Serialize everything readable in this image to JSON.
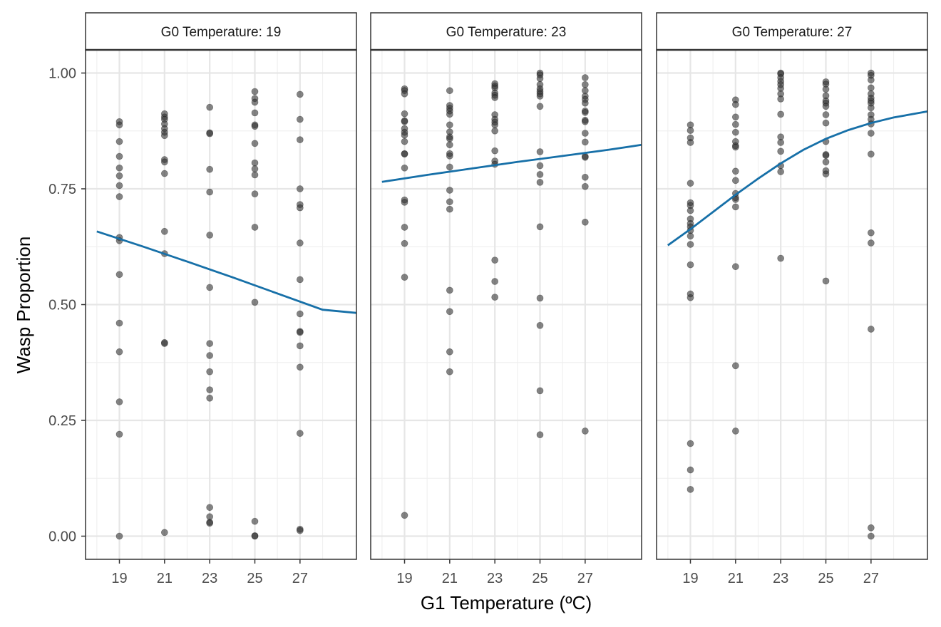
{
  "chart_data": {
    "type": "scatter",
    "title": "",
    "xlabel": "G1 Temperature (ºC)",
    "ylabel": "Wasp Proportion",
    "x_ticks": [
      19,
      21,
      23,
      25,
      27
    ],
    "y_ticks": [
      "0.00",
      "0.25",
      "0.50",
      "0.75",
      "1.00"
    ],
    "xlim": [
      17.5,
      29.5
    ],
    "ylim": [
      -0.05,
      1.05
    ],
    "grid": true,
    "point_color": "#333333",
    "line_color": "#1770A8",
    "panels": [
      {
        "strip_label": "G0 Temperature: 19",
        "fit_line": {
          "x": [
            18,
            20,
            22,
            24,
            26,
            28,
            29.5
          ],
          "y": [
            0.658,
            0.626,
            0.593,
            0.559,
            0.524,
            0.489,
            0.482
          ]
        },
        "points": [
          [
            19,
            0.895
          ],
          [
            19,
            0.888
          ],
          [
            19,
            0.852
          ],
          [
            19,
            0.82
          ],
          [
            19,
            0.795
          ],
          [
            19,
            0.778
          ],
          [
            19,
            0.757
          ],
          [
            19,
            0.733
          ],
          [
            19,
            0.645
          ],
          [
            19,
            0.638
          ],
          [
            19,
            0.565
          ],
          [
            19,
            0.46
          ],
          [
            19,
            0.398
          ],
          [
            19,
            0.29
          ],
          [
            19,
            0.22
          ],
          [
            19,
            0.0
          ],
          [
            21,
            0.912
          ],
          [
            21,
            0.905
          ],
          [
            21,
            0.9
          ],
          [
            21,
            0.89
          ],
          [
            21,
            0.88
          ],
          [
            21,
            0.872
          ],
          [
            21,
            0.865
          ],
          [
            21,
            0.813
          ],
          [
            21,
            0.808
          ],
          [
            21,
            0.783
          ],
          [
            21,
            0.658
          ],
          [
            21,
            0.61
          ],
          [
            21,
            0.418
          ],
          [
            21,
            0.416
          ],
          [
            21,
            0.008
          ],
          [
            23,
            0.926
          ],
          [
            23,
            0.871
          ],
          [
            23,
            0.869
          ],
          [
            23,
            0.792
          ],
          [
            23,
            0.743
          ],
          [
            23,
            0.65
          ],
          [
            23,
            0.537
          ],
          [
            23,
            0.416
          ],
          [
            23,
            0.39
          ],
          [
            23,
            0.355
          ],
          [
            23,
            0.316
          ],
          [
            23,
            0.298
          ],
          [
            23,
            0.062
          ],
          [
            23,
            0.042
          ],
          [
            23,
            0.03
          ],
          [
            23,
            0.028
          ],
          [
            25,
            0.96
          ],
          [
            25,
            0.945
          ],
          [
            25,
            0.937
          ],
          [
            25,
            0.914
          ],
          [
            25,
            0.888
          ],
          [
            25,
            0.885
          ],
          [
            25,
            0.848
          ],
          [
            25,
            0.806
          ],
          [
            25,
            0.793
          ],
          [
            25,
            0.78
          ],
          [
            25,
            0.739
          ],
          [
            25,
            0.667
          ],
          [
            25,
            0.505
          ],
          [
            25,
            0.032
          ],
          [
            25,
            0.001
          ],
          [
            25,
            0.0
          ],
          [
            27,
            0.954
          ],
          [
            27,
            0.9
          ],
          [
            27,
            0.856
          ],
          [
            27,
            0.75
          ],
          [
            27,
            0.716
          ],
          [
            27,
            0.709
          ],
          [
            27,
            0.633
          ],
          [
            27,
            0.554
          ],
          [
            27,
            0.48
          ],
          [
            27,
            0.442
          ],
          [
            27,
            0.44
          ],
          [
            27,
            0.411
          ],
          [
            27,
            0.365
          ],
          [
            27,
            0.222
          ],
          [
            27,
            0.015
          ],
          [
            27,
            0.012
          ]
        ]
      },
      {
        "strip_label": "G0 Temperature: 23",
        "fit_line": {
          "x": [
            18,
            20,
            22,
            24,
            26,
            28,
            29.5
          ],
          "y": [
            0.765,
            0.78,
            0.794,
            0.808,
            0.821,
            0.834,
            0.845
          ]
        },
        "points": [
          [
            19,
            0.966
          ],
          [
            19,
            0.962
          ],
          [
            19,
            0.955
          ],
          [
            19,
            0.912
          ],
          [
            19,
            0.897
          ],
          [
            19,
            0.895
          ],
          [
            19,
            0.88
          ],
          [
            19,
            0.872
          ],
          [
            19,
            0.866
          ],
          [
            19,
            0.852
          ],
          [
            19,
            0.826
          ],
          [
            19,
            0.825
          ],
          [
            19,
            0.795
          ],
          [
            19,
            0.726
          ],
          [
            19,
            0.721
          ],
          [
            19,
            0.667
          ],
          [
            19,
            0.632
          ],
          [
            19,
            0.559
          ],
          [
            19,
            0.045
          ],
          [
            21,
            0.962
          ],
          [
            21,
            0.93
          ],
          [
            21,
            0.924
          ],
          [
            21,
            0.918
          ],
          [
            21,
            0.911
          ],
          [
            21,
            0.888
          ],
          [
            21,
            0.873
          ],
          [
            21,
            0.862
          ],
          [
            21,
            0.858
          ],
          [
            21,
            0.845
          ],
          [
            21,
            0.826
          ],
          [
            21,
            0.821
          ],
          [
            21,
            0.797
          ],
          [
            21,
            0.747
          ],
          [
            21,
            0.722
          ],
          [
            21,
            0.706
          ],
          [
            21,
            0.531
          ],
          [
            21,
            0.485
          ],
          [
            21,
            0.398
          ],
          [
            21,
            0.355
          ],
          [
            23,
            0.977
          ],
          [
            23,
            0.972
          ],
          [
            23,
            0.968
          ],
          [
            23,
            0.957
          ],
          [
            23,
            0.952
          ],
          [
            23,
            0.947
          ],
          [
            23,
            0.91
          ],
          [
            23,
            0.9
          ],
          [
            23,
            0.894
          ],
          [
            23,
            0.888
          ],
          [
            23,
            0.875
          ],
          [
            23,
            0.832
          ],
          [
            23,
            0.81
          ],
          [
            23,
            0.803
          ],
          [
            23,
            0.596
          ],
          [
            23,
            0.55
          ],
          [
            23,
            0.516
          ],
          [
            25,
            1.0
          ],
          [
            25,
            0.996
          ],
          [
            25,
            0.988
          ],
          [
            25,
            0.975
          ],
          [
            25,
            0.966
          ],
          [
            25,
            0.96
          ],
          [
            25,
            0.955
          ],
          [
            25,
            0.95
          ],
          [
            25,
            0.928
          ],
          [
            25,
            0.83
          ],
          [
            25,
            0.8
          ],
          [
            25,
            0.781
          ],
          [
            25,
            0.764
          ],
          [
            25,
            0.668
          ],
          [
            25,
            0.514
          ],
          [
            25,
            0.455
          ],
          [
            25,
            0.314
          ],
          [
            25,
            0.219
          ],
          [
            27,
            0.99
          ],
          [
            27,
            0.975
          ],
          [
            27,
            0.962
          ],
          [
            27,
            0.95
          ],
          [
            27,
            0.943
          ],
          [
            27,
            0.935
          ],
          [
            27,
            0.918
          ],
          [
            27,
            0.915
          ],
          [
            27,
            0.898
          ],
          [
            27,
            0.895
          ],
          [
            27,
            0.87
          ],
          [
            27,
            0.851
          ],
          [
            27,
            0.82
          ],
          [
            27,
            0.818
          ],
          [
            27,
            0.775
          ],
          [
            27,
            0.755
          ],
          [
            27,
            0.678
          ],
          [
            27,
            0.227
          ]
        ]
      },
      {
        "strip_label": "G0 Temperature: 27",
        "fit_line": {
          "x": [
            18,
            19,
            20,
            21,
            22,
            23,
            24,
            25,
            26,
            27,
            28,
            29.5
          ],
          "y": [
            0.628,
            0.663,
            0.7,
            0.737,
            0.772,
            0.805,
            0.834,
            0.858,
            0.877,
            0.892,
            0.904,
            0.917
          ]
        },
        "points": [
          [
            19,
            0.888
          ],
          [
            19,
            0.876
          ],
          [
            19,
            0.86
          ],
          [
            19,
            0.85
          ],
          [
            19,
            0.762
          ],
          [
            19,
            0.72
          ],
          [
            19,
            0.714
          ],
          [
            19,
            0.703
          ],
          [
            19,
            0.685
          ],
          [
            19,
            0.675
          ],
          [
            19,
            0.668
          ],
          [
            19,
            0.66
          ],
          [
            19,
            0.648
          ],
          [
            19,
            0.63
          ],
          [
            19,
            0.586
          ],
          [
            19,
            0.523
          ],
          [
            19,
            0.515
          ],
          [
            19,
            0.2
          ],
          [
            19,
            0.143
          ],
          [
            19,
            0.101
          ],
          [
            21,
            0.942
          ],
          [
            21,
            0.932
          ],
          [
            21,
            0.905
          ],
          [
            21,
            0.889
          ],
          [
            21,
            0.872
          ],
          [
            21,
            0.852
          ],
          [
            21,
            0.843
          ],
          [
            21,
            0.84
          ],
          [
            21,
            0.788
          ],
          [
            21,
            0.768
          ],
          [
            21,
            0.74
          ],
          [
            21,
            0.731
          ],
          [
            21,
            0.727
          ],
          [
            21,
            0.711
          ],
          [
            21,
            0.582
          ],
          [
            21,
            0.368
          ],
          [
            21,
            0.227
          ],
          [
            23,
            1.0
          ],
          [
            23,
            0.998
          ],
          [
            23,
            0.99
          ],
          [
            23,
            0.982
          ],
          [
            23,
            0.975
          ],
          [
            23,
            0.967
          ],
          [
            23,
            0.955
          ],
          [
            23,
            0.944
          ],
          [
            23,
            0.911
          ],
          [
            23,
            0.862
          ],
          [
            23,
            0.85
          ],
          [
            23,
            0.831
          ],
          [
            23,
            0.8
          ],
          [
            23,
            0.787
          ],
          [
            23,
            0.6
          ],
          [
            25,
            0.981
          ],
          [
            25,
            0.976
          ],
          [
            25,
            0.965
          ],
          [
            25,
            0.951
          ],
          [
            25,
            0.94
          ],
          [
            25,
            0.935
          ],
          [
            25,
            0.928
          ],
          [
            25,
            0.91
          ],
          [
            25,
            0.892
          ],
          [
            25,
            0.852
          ],
          [
            25,
            0.824
          ],
          [
            25,
            0.822
          ],
          [
            25,
            0.808
          ],
          [
            25,
            0.789
          ],
          [
            25,
            0.782
          ],
          [
            25,
            0.551
          ],
          [
            27,
            1.0
          ],
          [
            27,
            0.995
          ],
          [
            27,
            0.985
          ],
          [
            27,
            0.968
          ],
          [
            27,
            0.955
          ],
          [
            27,
            0.946
          ],
          [
            27,
            0.94
          ],
          [
            27,
            0.935
          ],
          [
            27,
            0.925
          ],
          [
            27,
            0.91
          ],
          [
            27,
            0.9
          ],
          [
            27,
            0.89
          ],
          [
            27,
            0.87
          ],
          [
            27,
            0.825
          ],
          [
            27,
            0.655
          ],
          [
            27,
            0.633
          ],
          [
            27,
            0.447
          ],
          [
            27,
            0.018
          ],
          [
            27,
            0.0
          ]
        ]
      }
    ]
  }
}
